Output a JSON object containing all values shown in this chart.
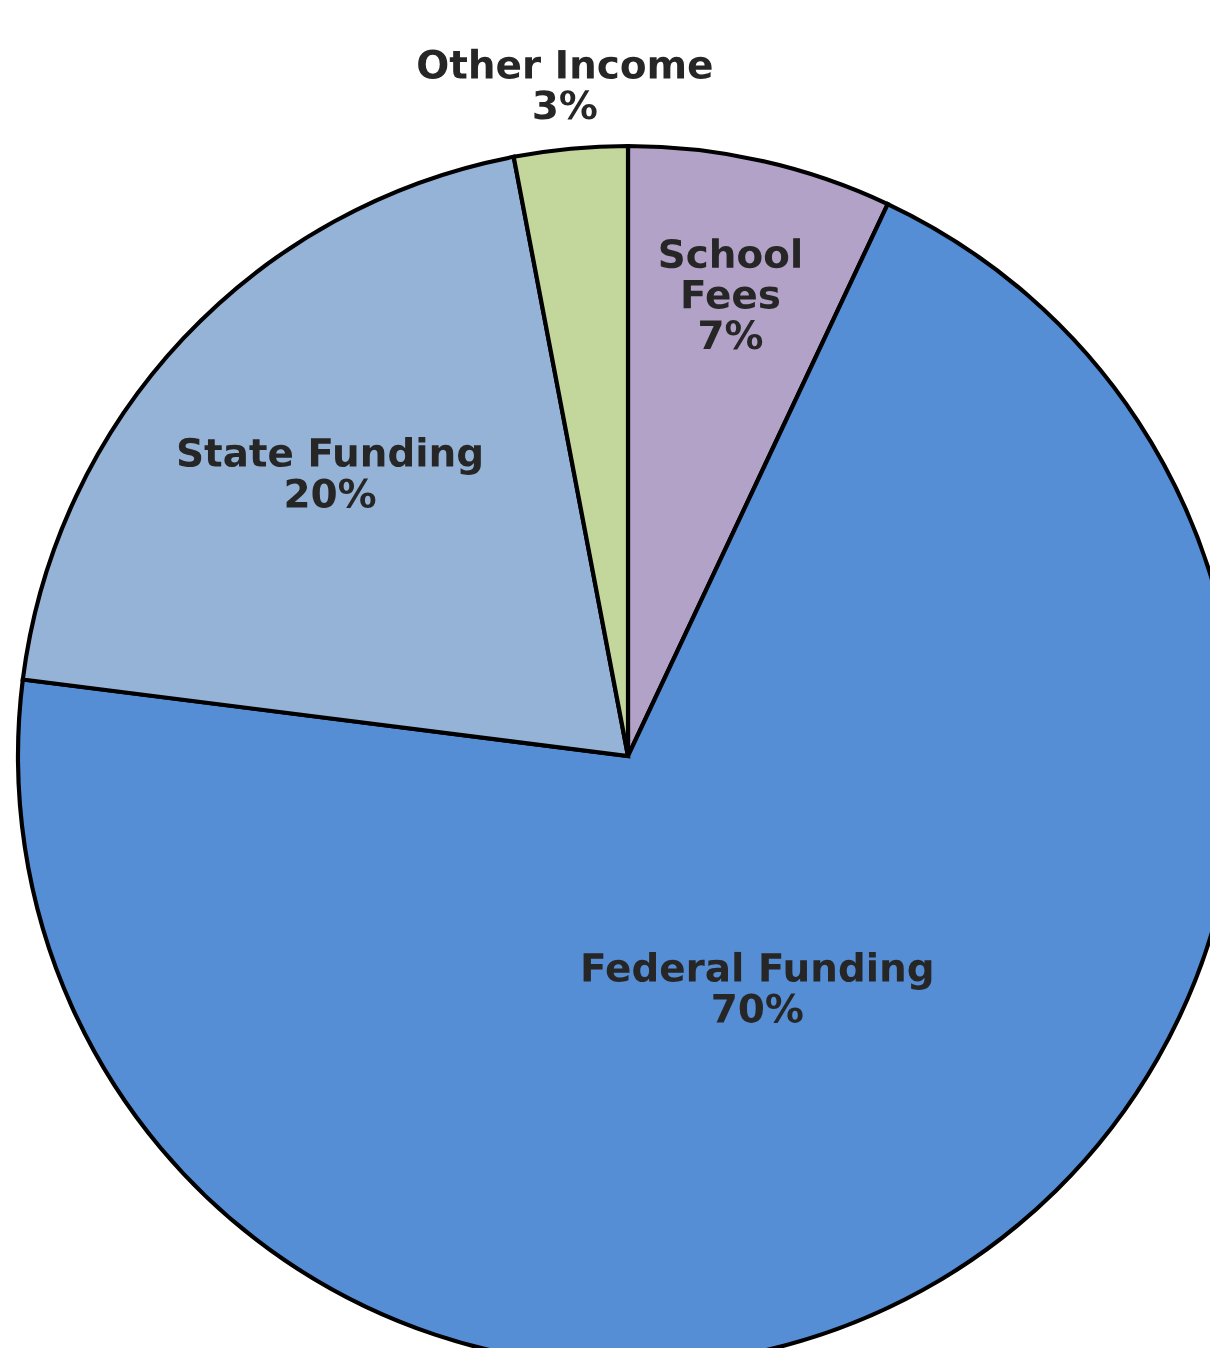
{
  "chart_data": {
    "type": "pie",
    "categories": [
      "School Fees",
      "Federal Funding",
      "State Funding",
      "Other Income"
    ],
    "values": [
      7,
      70,
      20,
      3
    ],
    "value_labels": [
      "7%",
      "70%",
      "20%",
      "3%"
    ],
    "colors": [
      "#b3a2c7",
      "#558ed5",
      "#95b3d7",
      "#c3d69b"
    ],
    "legend": false
  }
}
